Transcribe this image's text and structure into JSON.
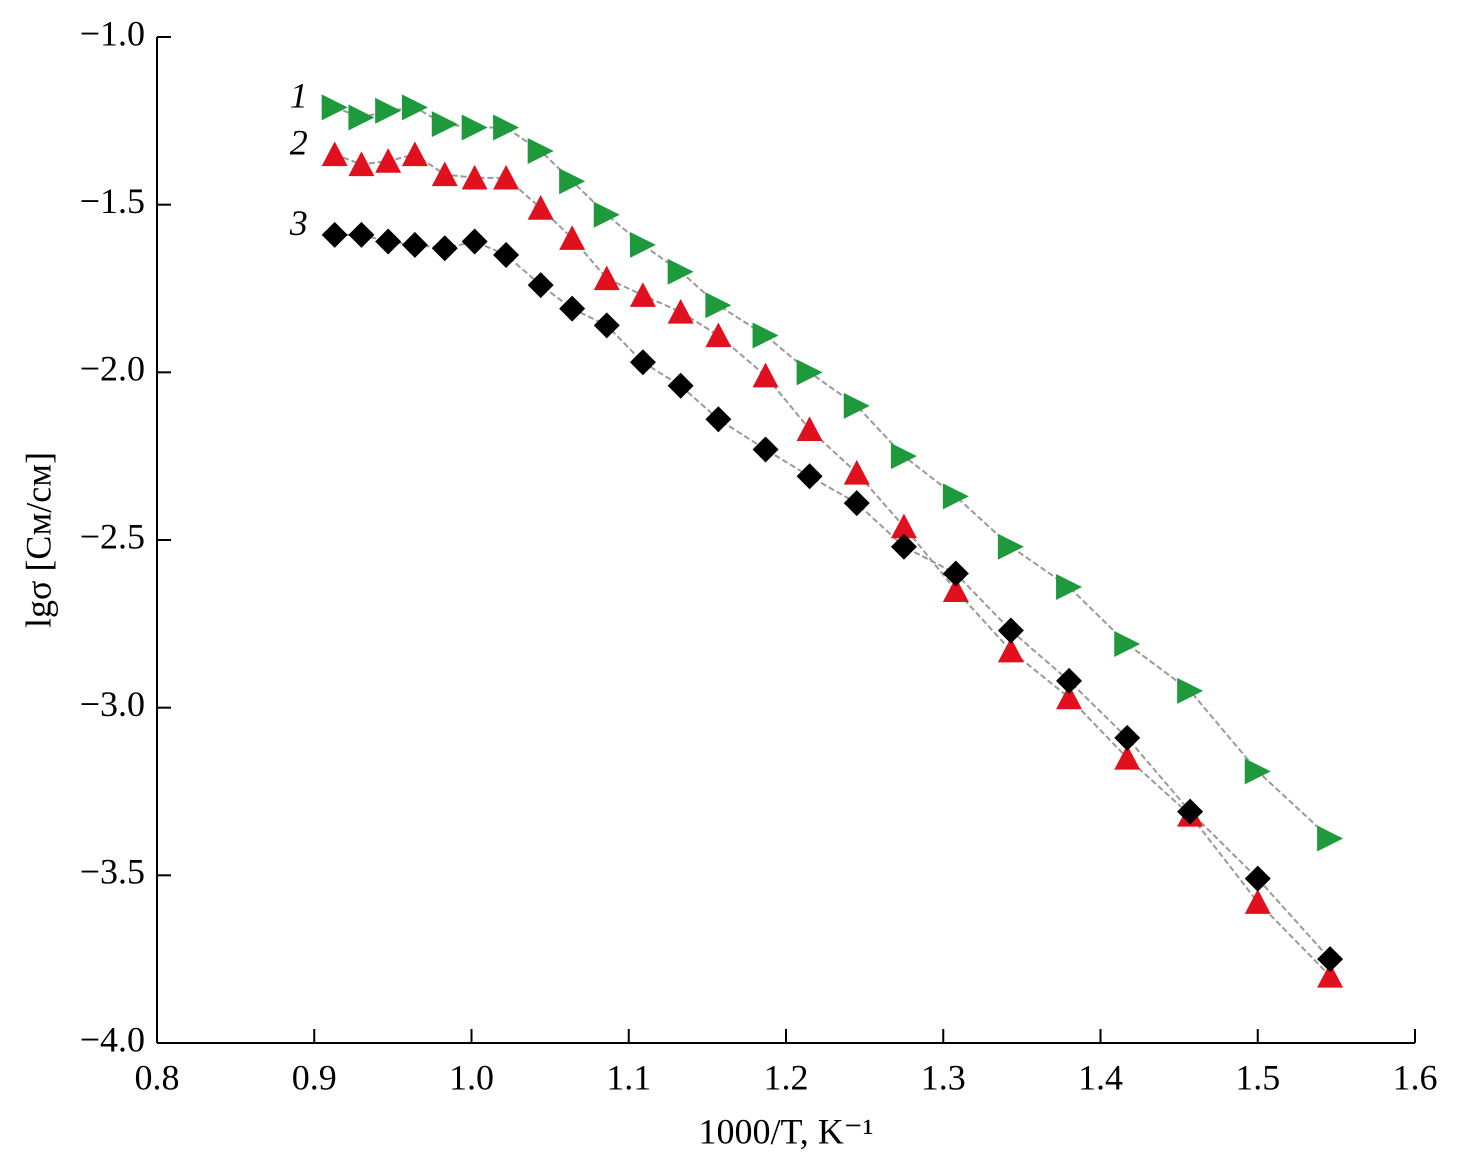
{
  "chart_data": {
    "type": "scatter",
    "x_label": "1000/T, K⁻¹",
    "y_label": "lgσ [См/см]",
    "xlim": [
      0.8,
      1.6
    ],
    "xticks": [
      0.8,
      0.9,
      {
        "value": 1.0,
        "label": "1.0"
      },
      1.1,
      1.2,
      1.3,
      1.4,
      1.5,
      1.6
    ],
    "ylim": [
      -4.0,
      -1.0
    ],
    "yticks": [
      {
        "value": -4.0,
        "label": "−4.0"
      },
      {
        "value": -3.5,
        "label": "−3.5"
      },
      {
        "value": -3.0,
        "label": "−3.0"
      },
      {
        "value": -2.5,
        "label": "−2.5"
      },
      {
        "value": -2.0,
        "label": "−2.0"
      },
      {
        "value": -1.5,
        "label": "−1.5"
      },
      {
        "value": -1.0,
        "label": "−1.0"
      }
    ],
    "line_color": "#9a9a9a",
    "series": [
      {
        "name": "1",
        "color": "#1e9a3c",
        "marker": "triangle-right",
        "x": [
          0.913,
          0.93,
          0.947,
          0.964,
          0.983,
          1.002,
          1.022,
          1.044,
          1.064,
          1.086,
          1.109,
          1.133,
          1.157,
          1.187,
          1.215,
          1.245,
          1.275,
          1.308,
          1.343,
          1.38,
          1.417,
          1.457,
          1.5,
          1.546
        ],
        "values": [
          -1.21,
          -1.24,
          -1.22,
          -1.21,
          -1.26,
          -1.27,
          -1.27,
          -1.34,
          -1.43,
          -1.53,
          -1.62,
          -1.7,
          -1.8,
          -1.89,
          -2.0,
          -2.1,
          -2.25,
          -2.37,
          -2.52,
          -2.64,
          -2.81,
          -2.95,
          -3.19,
          -3.39
        ]
      },
      {
        "name": "2",
        "color": "#e0101e",
        "marker": "triangle-up",
        "x": [
          0.913,
          0.93,
          0.947,
          0.964,
          0.983,
          1.002,
          1.022,
          1.044,
          1.064,
          1.086,
          1.109,
          1.133,
          1.157,
          1.187,
          1.215,
          1.245,
          1.275,
          1.308,
          1.343,
          1.38,
          1.417,
          1.457,
          1.5,
          1.546
        ],
        "values": [
          -1.35,
          -1.38,
          -1.37,
          -1.35,
          -1.41,
          -1.42,
          -1.42,
          -1.51,
          -1.6,
          -1.72,
          -1.77,
          -1.82,
          -1.89,
          -2.01,
          -2.17,
          -2.3,
          -2.46,
          -2.65,
          -2.83,
          -2.97,
          -3.15,
          -3.32,
          -3.58,
          -3.8
        ]
      },
      {
        "name": "3",
        "color": "#000000",
        "marker": "diamond",
        "x": [
          0.913,
          0.93,
          0.947,
          0.964,
          0.983,
          1.002,
          1.022,
          1.044,
          1.064,
          1.086,
          1.109,
          1.133,
          1.157,
          1.187,
          1.215,
          1.245,
          1.275,
          1.308,
          1.343,
          1.38,
          1.417,
          1.457,
          1.5,
          1.546
        ],
        "values": [
          -1.59,
          -1.59,
          -1.61,
          -1.62,
          -1.63,
          -1.61,
          -1.65,
          -1.74,
          -1.81,
          -1.86,
          -1.97,
          -2.04,
          -2.14,
          -2.23,
          -2.31,
          -2.39,
          -2.52,
          -2.6,
          -2.77,
          -2.92,
          -3.09,
          -3.31,
          -3.51,
          -3.75
        ]
      }
    ]
  }
}
